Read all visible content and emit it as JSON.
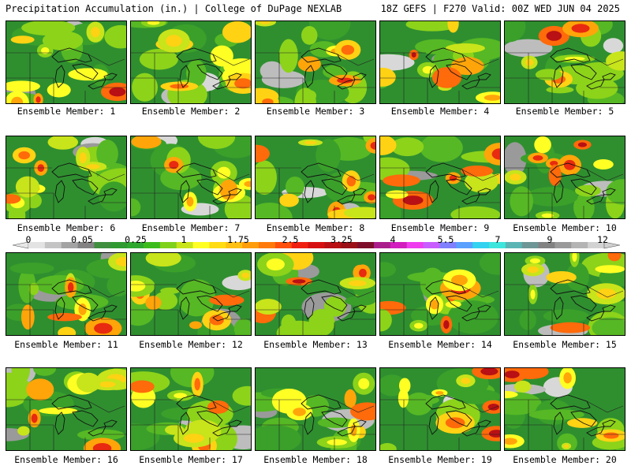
{
  "header": {
    "title": "Precipitation Accumulation (in.) | College of DuPage NEXLAB",
    "run_info": "18Z GEFS | F270 Valid: 00Z WED JUN 04 2025"
  },
  "legend": {
    "tick_labels": [
      "0",
      "0.05",
      "0.25",
      "1",
      "1.75",
      "2.5",
      "3.25",
      "4",
      "5.5",
      "7",
      "9",
      "12"
    ],
    "colors": [
      "#e3e3e3",
      "#c4c4c4",
      "#a3a3a3",
      "#838383",
      "#3f8f3f",
      "#2f9a2f",
      "#2fa82f",
      "#3cbc1c",
      "#7fd11a",
      "#c8e41a",
      "#ffff24",
      "#ffdc14",
      "#ffc014",
      "#ff9d0a",
      "#ff7a0a",
      "#ff4f0a",
      "#f02010",
      "#d61010",
      "#b81014",
      "#9a1016",
      "#7d0d2a",
      "#aa1e8c",
      "#d21ebe",
      "#ee3cee",
      "#c85cff",
      "#7f7fff",
      "#5aa0ff",
      "#32d2f0",
      "#3ce6dc",
      "#5ab4b4",
      "#6e9696",
      "#828282",
      "#9a9a9a",
      "#b4b4b4",
      "#d2d2d2"
    ]
  },
  "panels": [
    {
      "label": "Ensemble Member: 1"
    },
    {
      "label": "Ensemble Member: 2"
    },
    {
      "label": "Ensemble Member: 3"
    },
    {
      "label": "Ensemble Member: 4"
    },
    {
      "label": "Ensemble Member: 5"
    },
    {
      "label": "Ensemble Member: 6"
    },
    {
      "label": "Ensemble Member: 7"
    },
    {
      "label": "Ensemble Member: 8"
    },
    {
      "label": "Ensemble Member: 9"
    },
    {
      "label": "Ensemble Member: 10"
    },
    {
      "label": "Ensemble Member: 11"
    },
    {
      "label": "Ensemble Member: 12"
    },
    {
      "label": "Ensemble Member: 13"
    },
    {
      "label": "Ensemble Member: 14"
    },
    {
      "label": "Ensemble Member: 15"
    },
    {
      "label": "Ensemble Member: 16"
    },
    {
      "label": "Ensemble Member: 17"
    },
    {
      "label": "Ensemble Member: 18"
    },
    {
      "label": "Ensemble Member: 19"
    },
    {
      "label": "Ensemble Member: 20"
    }
  ]
}
